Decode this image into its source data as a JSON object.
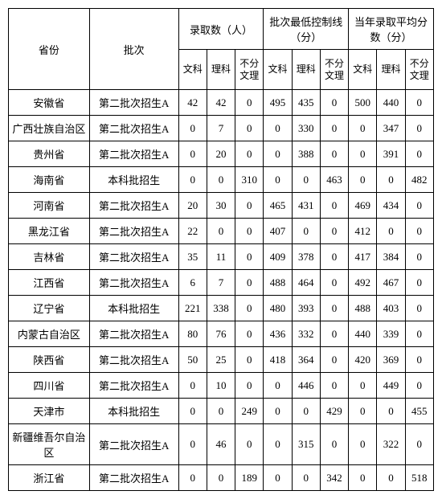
{
  "table": {
    "headers": {
      "province": "省份",
      "batch": "批次",
      "group1": "录取数（人）",
      "group2": "批次最低控制线（分）",
      "group3": "当年录取平均分数（分）",
      "sub_wenke": "文科",
      "sub_like": "理科",
      "sub_bufen": "不分文理"
    },
    "rows": [
      {
        "province": "安徽省",
        "batch": "第二批次招生A",
        "v": [
          "42",
          "42",
          "0",
          "495",
          "435",
          "0",
          "500",
          "440",
          "0"
        ]
      },
      {
        "province": "广西壮族自治区",
        "batch": "第二批次招生A",
        "v": [
          "0",
          "7",
          "0",
          "0",
          "330",
          "0",
          "0",
          "347",
          "0"
        ]
      },
      {
        "province": "贵州省",
        "batch": "第二批次招生A",
        "v": [
          "0",
          "20",
          "0",
          "0",
          "388",
          "0",
          "0",
          "391",
          "0"
        ]
      },
      {
        "province": "海南省",
        "batch": "本科批招生",
        "v": [
          "0",
          "0",
          "310",
          "0",
          "0",
          "463",
          "0",
          "0",
          "482"
        ]
      },
      {
        "province": "河南省",
        "batch": "第二批次招生A",
        "v": [
          "20",
          "30",
          "0",
          "465",
          "431",
          "0",
          "469",
          "434",
          "0"
        ]
      },
      {
        "province": "黑龙江省",
        "batch": "第二批次招生A",
        "v": [
          "22",
          "0",
          "0",
          "407",
          "0",
          "0",
          "412",
          "0",
          "0"
        ]
      },
      {
        "province": "吉林省",
        "batch": "第二批次招生A",
        "v": [
          "35",
          "11",
          "0",
          "409",
          "378",
          "0",
          "417",
          "384",
          "0"
        ]
      },
      {
        "province": "江西省",
        "batch": "第二批次招生A",
        "v": [
          "6",
          "7",
          "0",
          "488",
          "464",
          "0",
          "492",
          "467",
          "0"
        ]
      },
      {
        "province": "辽宁省",
        "batch": "本科批招生",
        "v": [
          "221",
          "338",
          "0",
          "480",
          "393",
          "0",
          "488",
          "403",
          "0"
        ]
      },
      {
        "province": "内蒙古自治区",
        "batch": "第二批次招生A",
        "v": [
          "80",
          "76",
          "0",
          "436",
          "332",
          "0",
          "440",
          "339",
          "0"
        ]
      },
      {
        "province": "陕西省",
        "batch": "第二批次招生A",
        "v": [
          "50",
          "25",
          "0",
          "418",
          "364",
          "0",
          "420",
          "369",
          "0"
        ]
      },
      {
        "province": "四川省",
        "batch": "第二批次招生A",
        "v": [
          "0",
          "10",
          "0",
          "0",
          "446",
          "0",
          "0",
          "449",
          "0"
        ]
      },
      {
        "province": "天津市",
        "batch": "本科批招生",
        "v": [
          "0",
          "0",
          "249",
          "0",
          "0",
          "429",
          "0",
          "0",
          "455"
        ]
      },
      {
        "province": "新疆维吾尔自治区",
        "batch": "第二批次招生A",
        "v": [
          "0",
          "46",
          "0",
          "0",
          "315",
          "0",
          "0",
          "322",
          "0"
        ]
      },
      {
        "province": "浙江省",
        "batch": "第二批次招生A",
        "v": [
          "0",
          "0",
          "189",
          "0",
          "0",
          "342",
          "0",
          "0",
          "518"
        ]
      }
    ],
    "style": {
      "border_color": "#000000",
      "background_color": "#ffffff",
      "text_color": "#000000",
      "font_family": "SimSun",
      "font_size_body": 13,
      "font_size_subheader": 12
    }
  }
}
